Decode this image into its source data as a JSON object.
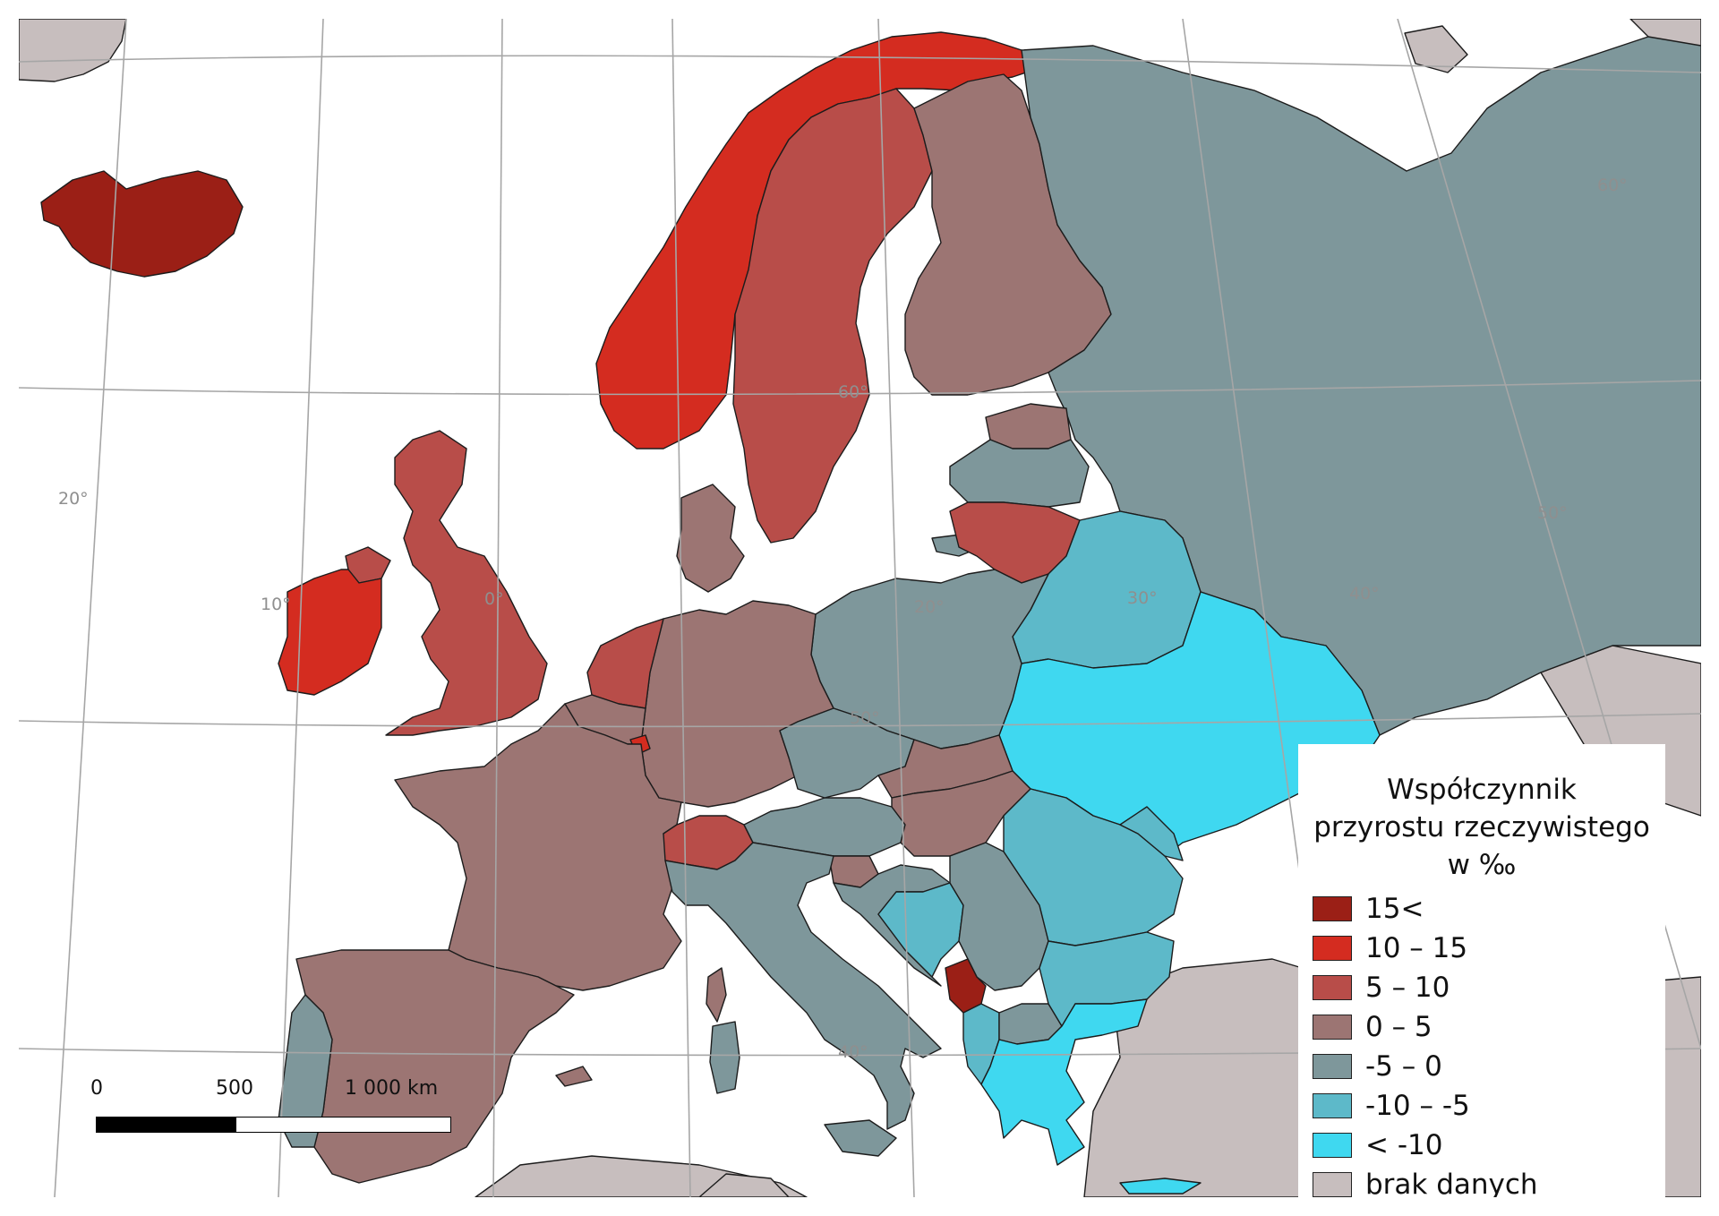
{
  "legend": {
    "title_line1": "Współczynnik",
    "title_line2": "przyrostu rzeczywistego",
    "title_line3": "w ‰",
    "items": [
      {
        "label": "15<",
        "color": "#9b1f16"
      },
      {
        "label": "10 – 15",
        "color": "#d42c20"
      },
      {
        "label": "5 – 10",
        "color": "#b84d49"
      },
      {
        "label": "0 – 5",
        "color": "#9c7573"
      },
      {
        "label": "-5 – 0",
        "color": "#7e979b"
      },
      {
        "label": "-10 – -5",
        "color": "#5db9c9"
      },
      {
        "label": "< -10",
        "color": "#3fd8f0"
      },
      {
        "label": "brak danych",
        "color": "#c7bebe"
      }
    ]
  },
  "scale_bar": {
    "label_0": "0",
    "label_500": "500",
    "label_1000": "1 000 km"
  },
  "graticule_labels": {
    "lon_10w": "10°",
    "lon_0": "0°",
    "lon_20e": "20°",
    "lon_30e": "30°",
    "lon_40e": "40°",
    "lat_20": "20°",
    "lat_50_east": "50°",
    "lat_60_east": "60°",
    "lat_60": "60°",
    "lat_50": "50°",
    "lat_40": "40°"
  },
  "map_colors": {
    "sea": "#ffffff",
    "graticule": "#a6a6a6",
    "border": "#1c1c1c"
  }
}
